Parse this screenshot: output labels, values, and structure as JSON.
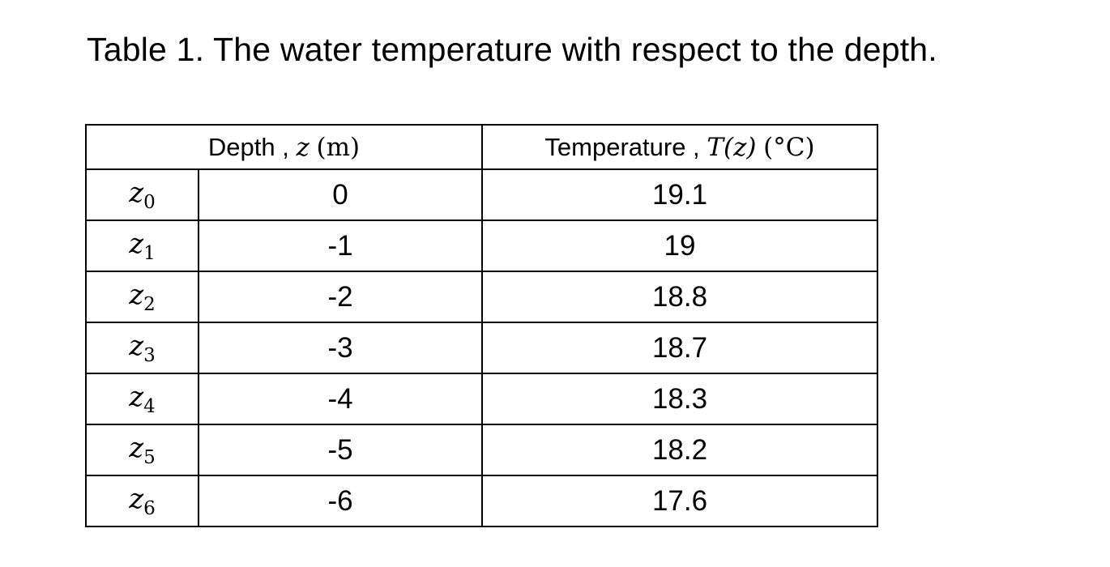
{
  "title": "Table 1. The water temperature with respect to the depth.",
  "header": {
    "depth_label": "Depth ,",
    "depth_symbol": "z",
    "depth_unit": "(m)",
    "temp_label": "Temperature ,",
    "temp_symbol": "T(z)",
    "temp_unit": "(°C)"
  },
  "rows": [
    {
      "var": "z",
      "sub": "0",
      "depth": "0",
      "temp": "19.1"
    },
    {
      "var": "z",
      "sub": "1",
      "depth": "-1",
      "temp": "19"
    },
    {
      "var": "z",
      "sub": "2",
      "depth": "-2",
      "temp": "18.8"
    },
    {
      "var": "z",
      "sub": "3",
      "depth": "-3",
      "temp": "18.7"
    },
    {
      "var": "z",
      "sub": "4",
      "depth": "-4",
      "temp": "18.3"
    },
    {
      "var": "z",
      "sub": "5",
      "depth": "-5",
      "temp": "18.2"
    },
    {
      "var": "z",
      "sub": "6",
      "depth": "-6",
      "temp": "17.6"
    }
  ]
}
